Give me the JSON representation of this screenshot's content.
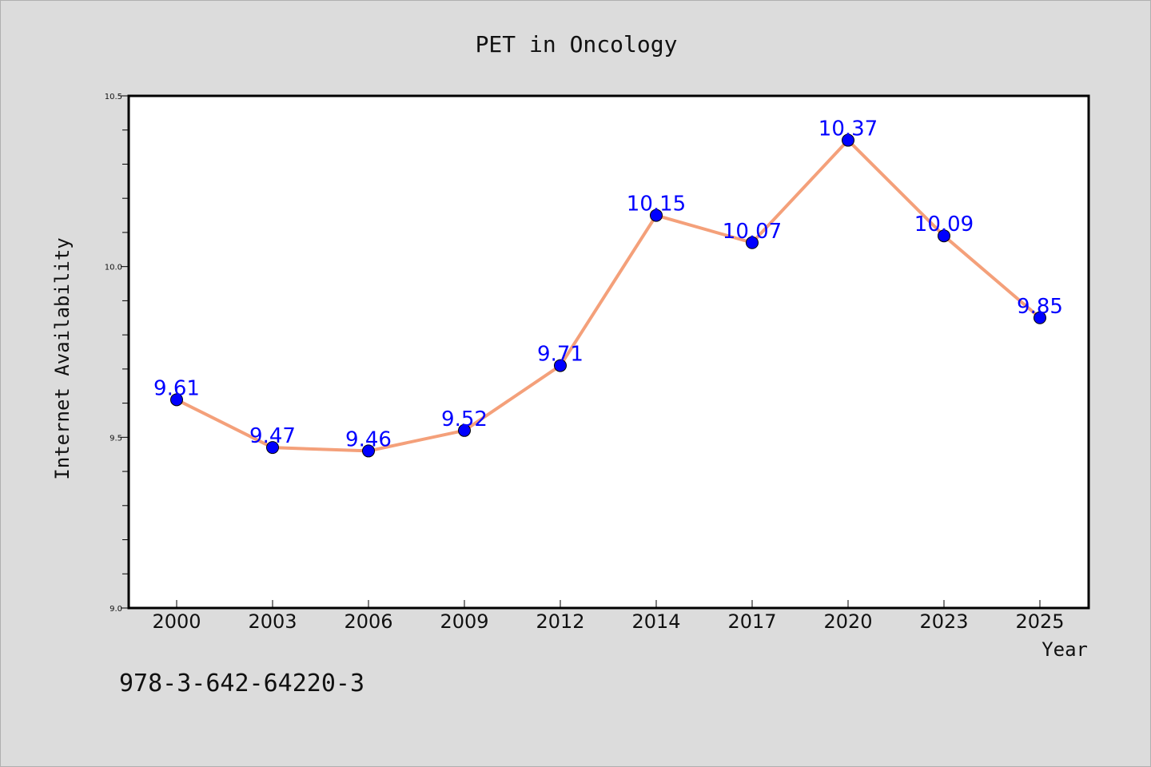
{
  "chart_data": {
    "type": "line",
    "title": "PET in Oncology",
    "xlabel": "Year",
    "ylabel": "Internet Availability",
    "categories": [
      "2000",
      "2003",
      "2006",
      "2009",
      "2012",
      "2014",
      "2017",
      "2020",
      "2023",
      "2025"
    ],
    "series": [
      {
        "values": [
          9.61,
          9.47,
          9.46,
          9.52,
          9.71,
          10.15,
          10.07,
          10.37,
          10.09,
          9.85
        ],
        "labels": [
          "9.61",
          "9.47",
          "9.46",
          "9.52",
          "9.71",
          "10.15",
          "10.07",
          "10.37",
          "10.09",
          "9.85"
        ],
        "line_color": "#f4a07a",
        "marker_color": "#0000ff",
        "label_color": "#0000ff"
      }
    ],
    "ylim": [
      9.0,
      10.5
    ],
    "yticks": [
      "9.0",
      "9.5",
      "10.0",
      "10.5"
    ],
    "grid": false,
    "legend": "none"
  },
  "footnote": "978-3-642-64220-3",
  "colors": {
    "background": "#dcdcdc",
    "plot_background": "#ffffff",
    "axis": "#000000"
  }
}
